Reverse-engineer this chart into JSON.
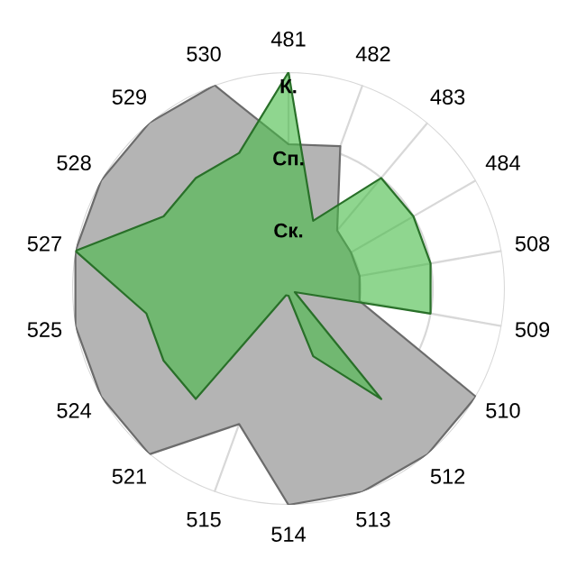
{
  "chart_data": {
    "type": "radar",
    "categories": [
      "481",
      "482",
      "483",
      "484",
      "508",
      "509",
      "510",
      "512",
      "513",
      "514",
      "515",
      "521",
      "524",
      "525",
      "527",
      "528",
      "529",
      "530"
    ],
    "series": [
      {
        "color": "#b4b4b4",
        "values": [
          2.0,
          2.1,
          1.05,
          1.0,
          1.0,
          1.0,
          3.0,
          3.0,
          3.0,
          3.0,
          2.0,
          3.0,
          3.0,
          3.0,
          3.0,
          3.0,
          3.0,
          3.0
        ]
      },
      {
        "color": "#44bb44",
        "values": [
          3.0,
          1.0,
          2.0,
          2.0,
          2.0,
          2.0,
          0.1,
          2.0,
          1.0,
          0.1,
          0.1,
          2.0,
          2.0,
          2.0,
          3.0,
          2.0,
          2.0,
          2.0
        ]
      }
    ],
    "ylim": [
      0,
      3
    ],
    "yticks": [
      {
        "value": 1,
        "label": "Ск."
      },
      {
        "value": 2,
        "label": "Сп."
      },
      {
        "value": 3,
        "label": "К."
      }
    ],
    "grid": true,
    "legend": false
  }
}
